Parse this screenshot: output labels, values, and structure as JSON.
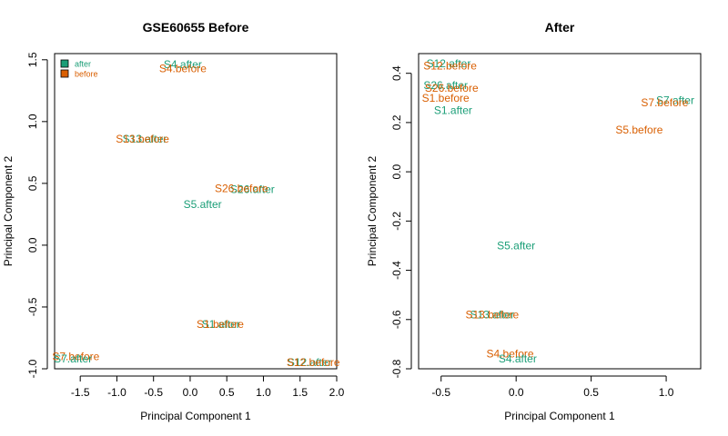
{
  "colors": {
    "after": "#1b9e77",
    "before": "#d95f02"
  },
  "chart_data": [
    {
      "type": "scatter",
      "title": "GSE60655 Before",
      "xlabel": "Principal Component 1",
      "ylabel": "Principal Component 2",
      "xlim": [
        -1.85,
        2.0
      ],
      "ylim": [
        -1.0,
        1.55
      ],
      "xticks": [
        -1.5,
        -1.0,
        -0.5,
        0.0,
        0.5,
        1.0,
        1.5,
        2.0
      ],
      "xtick_labels": [
        "-1.5",
        "-1.0",
        "-0.5",
        "0.0",
        "0.5",
        "1.0",
        "1.5",
        "2.0"
      ],
      "yticks": [
        -1.0,
        -0.5,
        0.0,
        0.5,
        1.0,
        1.5
      ],
      "ytick_labels": [
        "-1.0",
        "-0.5",
        "0.0",
        "0.5",
        "1.0",
        "1.5"
      ],
      "legend": {
        "position": "top-left",
        "entries": [
          {
            "label": "after",
            "group": "after"
          },
          {
            "label": "before",
            "group": "before"
          }
        ]
      },
      "points": [
        {
          "label": "S4.after",
          "group": "after",
          "x": -0.1,
          "y": 1.46
        },
        {
          "label": "S4.before",
          "group": "before",
          "x": -0.1,
          "y": 1.43
        },
        {
          "label": "S13.after",
          "group": "after",
          "x": -0.62,
          "y": 0.86
        },
        {
          "label": "S13.before",
          "group": "before",
          "x": -0.65,
          "y": 0.86
        },
        {
          "label": "S26.after",
          "group": "after",
          "x": 0.85,
          "y": 0.45
        },
        {
          "label": "S26.before",
          "group": "before",
          "x": 0.7,
          "y": 0.46
        },
        {
          "label": "S5.after",
          "group": "after",
          "x": 0.17,
          "y": 0.33
        },
        {
          "label": "S1.after",
          "group": "after",
          "x": 0.42,
          "y": -0.64
        },
        {
          "label": "S1.before",
          "group": "before",
          "x": 0.41,
          "y": -0.64
        },
        {
          "label": "S7.before",
          "group": "before",
          "x": -1.56,
          "y": -0.9
        },
        {
          "label": "S7.after",
          "group": "after",
          "x": -1.6,
          "y": -0.92
        },
        {
          "label": "S12.after",
          "group": "after",
          "x": 1.63,
          "y": -0.95
        },
        {
          "label": "S12.before",
          "group": "before",
          "x": 1.68,
          "y": -0.95
        }
      ]
    },
    {
      "type": "scatter",
      "title": "After",
      "xlabel": "Principal Component 1",
      "ylabel": "Principal Component 2",
      "xlim": [
        -0.65,
        1.23
      ],
      "ylim": [
        -0.8,
        0.48
      ],
      "xticks": [
        -0.5,
        0.0,
        0.5,
        1.0
      ],
      "xtick_labels": [
        "-0.5",
        "0.0",
        "0.5",
        "1.0"
      ],
      "yticks": [
        -0.8,
        -0.6,
        -0.4,
        -0.2,
        0.0,
        0.2,
        0.4
      ],
      "ytick_labels": [
        "-0.8",
        "-0.6",
        "-0.4",
        "-0.2",
        "0.0",
        "0.2",
        "0.4"
      ],
      "points": [
        {
          "label": "S12.after",
          "group": "after",
          "x": -0.45,
          "y": 0.44
        },
        {
          "label": "S12.before",
          "group": "before",
          "x": -0.44,
          "y": 0.43
        },
        {
          "label": "S26.after",
          "group": "after",
          "x": -0.47,
          "y": 0.35
        },
        {
          "label": "S26.before",
          "group": "before",
          "x": -0.43,
          "y": 0.34
        },
        {
          "label": "S1.before",
          "group": "before",
          "x": -0.47,
          "y": 0.3
        },
        {
          "label": "S1.after",
          "group": "after",
          "x": -0.42,
          "y": 0.25
        },
        {
          "label": "S7.after",
          "group": "after",
          "x": 1.06,
          "y": 0.29
        },
        {
          "label": "S7.before",
          "group": "before",
          "x": 0.99,
          "y": 0.28
        },
        {
          "label": "S5.before",
          "group": "before",
          "x": 0.82,
          "y": 0.17
        },
        {
          "label": "S5.after",
          "group": "after",
          "x": 0.0,
          "y": -0.3
        },
        {
          "label": "S13.after",
          "group": "after",
          "x": -0.16,
          "y": -0.58
        },
        {
          "label": "S13.before",
          "group": "before",
          "x": -0.16,
          "y": -0.58
        },
        {
          "label": "S4.before",
          "group": "before",
          "x": -0.04,
          "y": -0.74
        },
        {
          "label": "S4.after",
          "group": "after",
          "x": 0.01,
          "y": -0.76
        }
      ]
    }
  ]
}
